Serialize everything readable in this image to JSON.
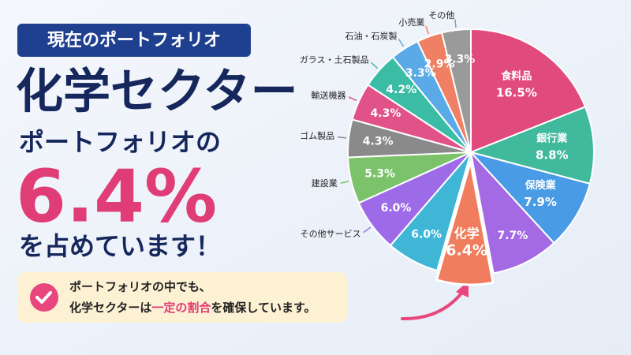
{
  "badge": "現在のポートフォリオ",
  "headline": "化学セクター",
  "lead": "ポートフォリオの",
  "share": "6.4%",
  "tail": "を占めています！",
  "note": {
    "line1": "ポートフォリオの中でも、",
    "line2": [
      "化学セクターは",
      "一定の割合",
      "を確保しています。"
    ]
  },
  "chart_data": {
    "type": "pie",
    "categories": [
      "食料品",
      "銀行業",
      "保険業",
      null,
      "化学",
      null,
      "その他サービス",
      "建設業",
      "ゴム製品",
      "輸送機器",
      "ガラス・土石製品",
      "石油・石炭製",
      "小売業",
      "その他"
    ],
    "values": [
      16.5,
      8.8,
      7.9,
      7.7,
      6.4,
      6.0,
      6.0,
      5.3,
      4.3,
      4.3,
      4.2,
      3.3,
      2.9,
      3.3
    ],
    "value_labels": [
      "16.5%",
      "8.8%",
      "7.9%",
      "7.7%",
      "6.4%",
      "6.0%",
      "6.0%",
      "5.3%",
      "4.3%",
      "4.3%",
      "4.2%",
      "3.3%",
      "2.9%",
      "3.3%"
    ],
    "colors": [
      "#e14a7c",
      "#40b99c",
      "#4a9be6",
      "#a36ae3",
      "#f07d5e",
      "#3fb6d6",
      "#9d6be8",
      "#7cc26a",
      "#8a8a8a",
      "#e05288",
      "#3bbca5",
      "#5aaae8",
      "#ef8063",
      "#9a9a9a"
    ],
    "highlight": "化学"
  }
}
